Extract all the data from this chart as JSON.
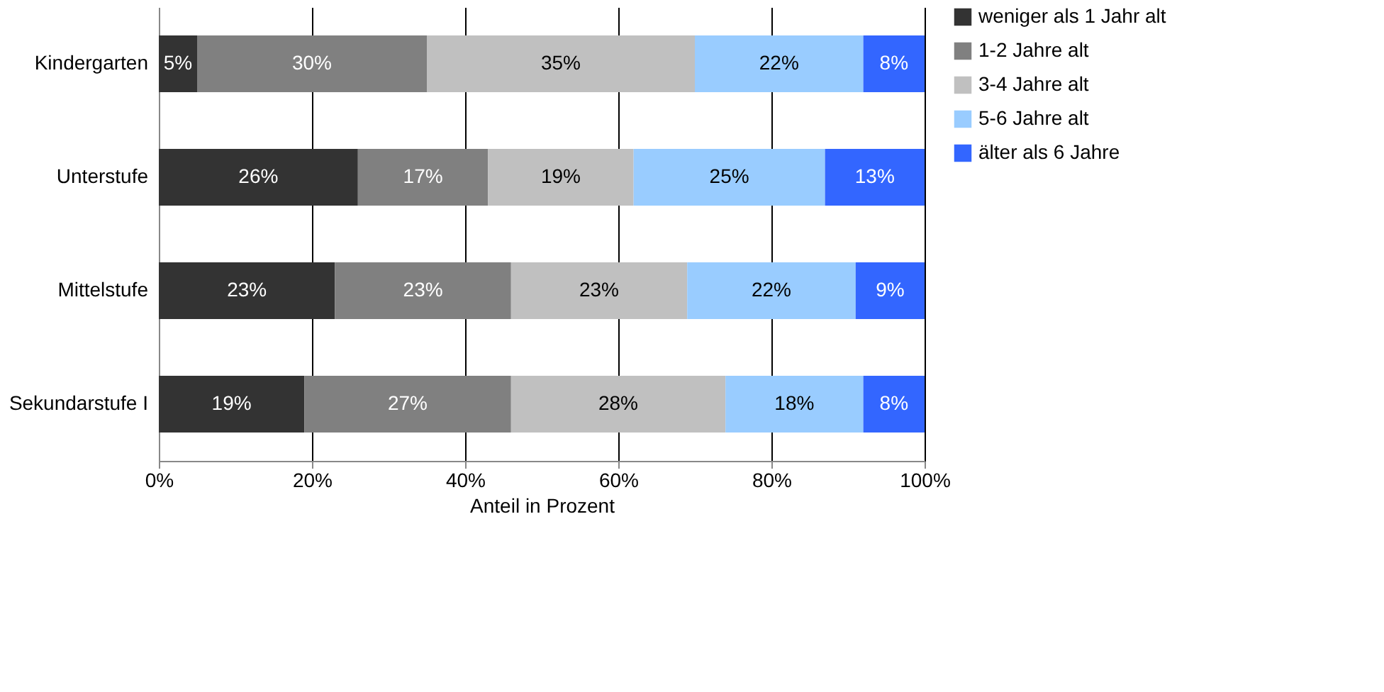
{
  "chart_data": {
    "type": "bar",
    "orientation": "horizontal",
    "stacked": true,
    "xlabel": "Anteil in Prozent",
    "categories": [
      "Kindergarten",
      "Unterstufe",
      "Mittelstufe",
      "Sekundarstufe I"
    ],
    "series": [
      {
        "name": "weniger als 1 Jahr alt",
        "color": "#333333",
        "values": [
          5,
          26,
          23,
          19
        ],
        "value_labels": [
          "5%",
          "26%",
          "23%",
          "19%"
        ]
      },
      {
        "name": "1-2 Jahre alt",
        "color": "#808080",
        "values": [
          30,
          17,
          23,
          27
        ],
        "value_labels": [
          "30%",
          "17%",
          "23%",
          "27%"
        ]
      },
      {
        "name": "3-4 Jahre alt",
        "color": "#c0c0c0",
        "values": [
          35,
          19,
          23,
          28
        ],
        "value_labels": [
          "35%",
          "19%",
          "23%",
          "28%"
        ]
      },
      {
        "name": "5-6 Jahre alt",
        "color": "#99ccff",
        "values": [
          22,
          25,
          22,
          18
        ],
        "value_labels": [
          "22%",
          "25%",
          "22%",
          "18%"
        ]
      },
      {
        "name": "älter als 6 Jahre",
        "color": "#3366ff",
        "values": [
          8,
          13,
          9,
          8
        ],
        "value_labels": [
          "8%",
          "13%",
          "9%",
          "8%"
        ]
      }
    ],
    "xlim": [
      0,
      100
    ],
    "xticks": [
      {
        "value": 0,
        "label": "0%"
      },
      {
        "value": 20,
        "label": "20%"
      },
      {
        "value": 40,
        "label": "40%"
      },
      {
        "value": 60,
        "label": "60%"
      },
      {
        "value": 80,
        "label": "80%"
      },
      {
        "value": 100,
        "label": "100%"
      }
    ],
    "grid": "x",
    "legend": "right"
  }
}
